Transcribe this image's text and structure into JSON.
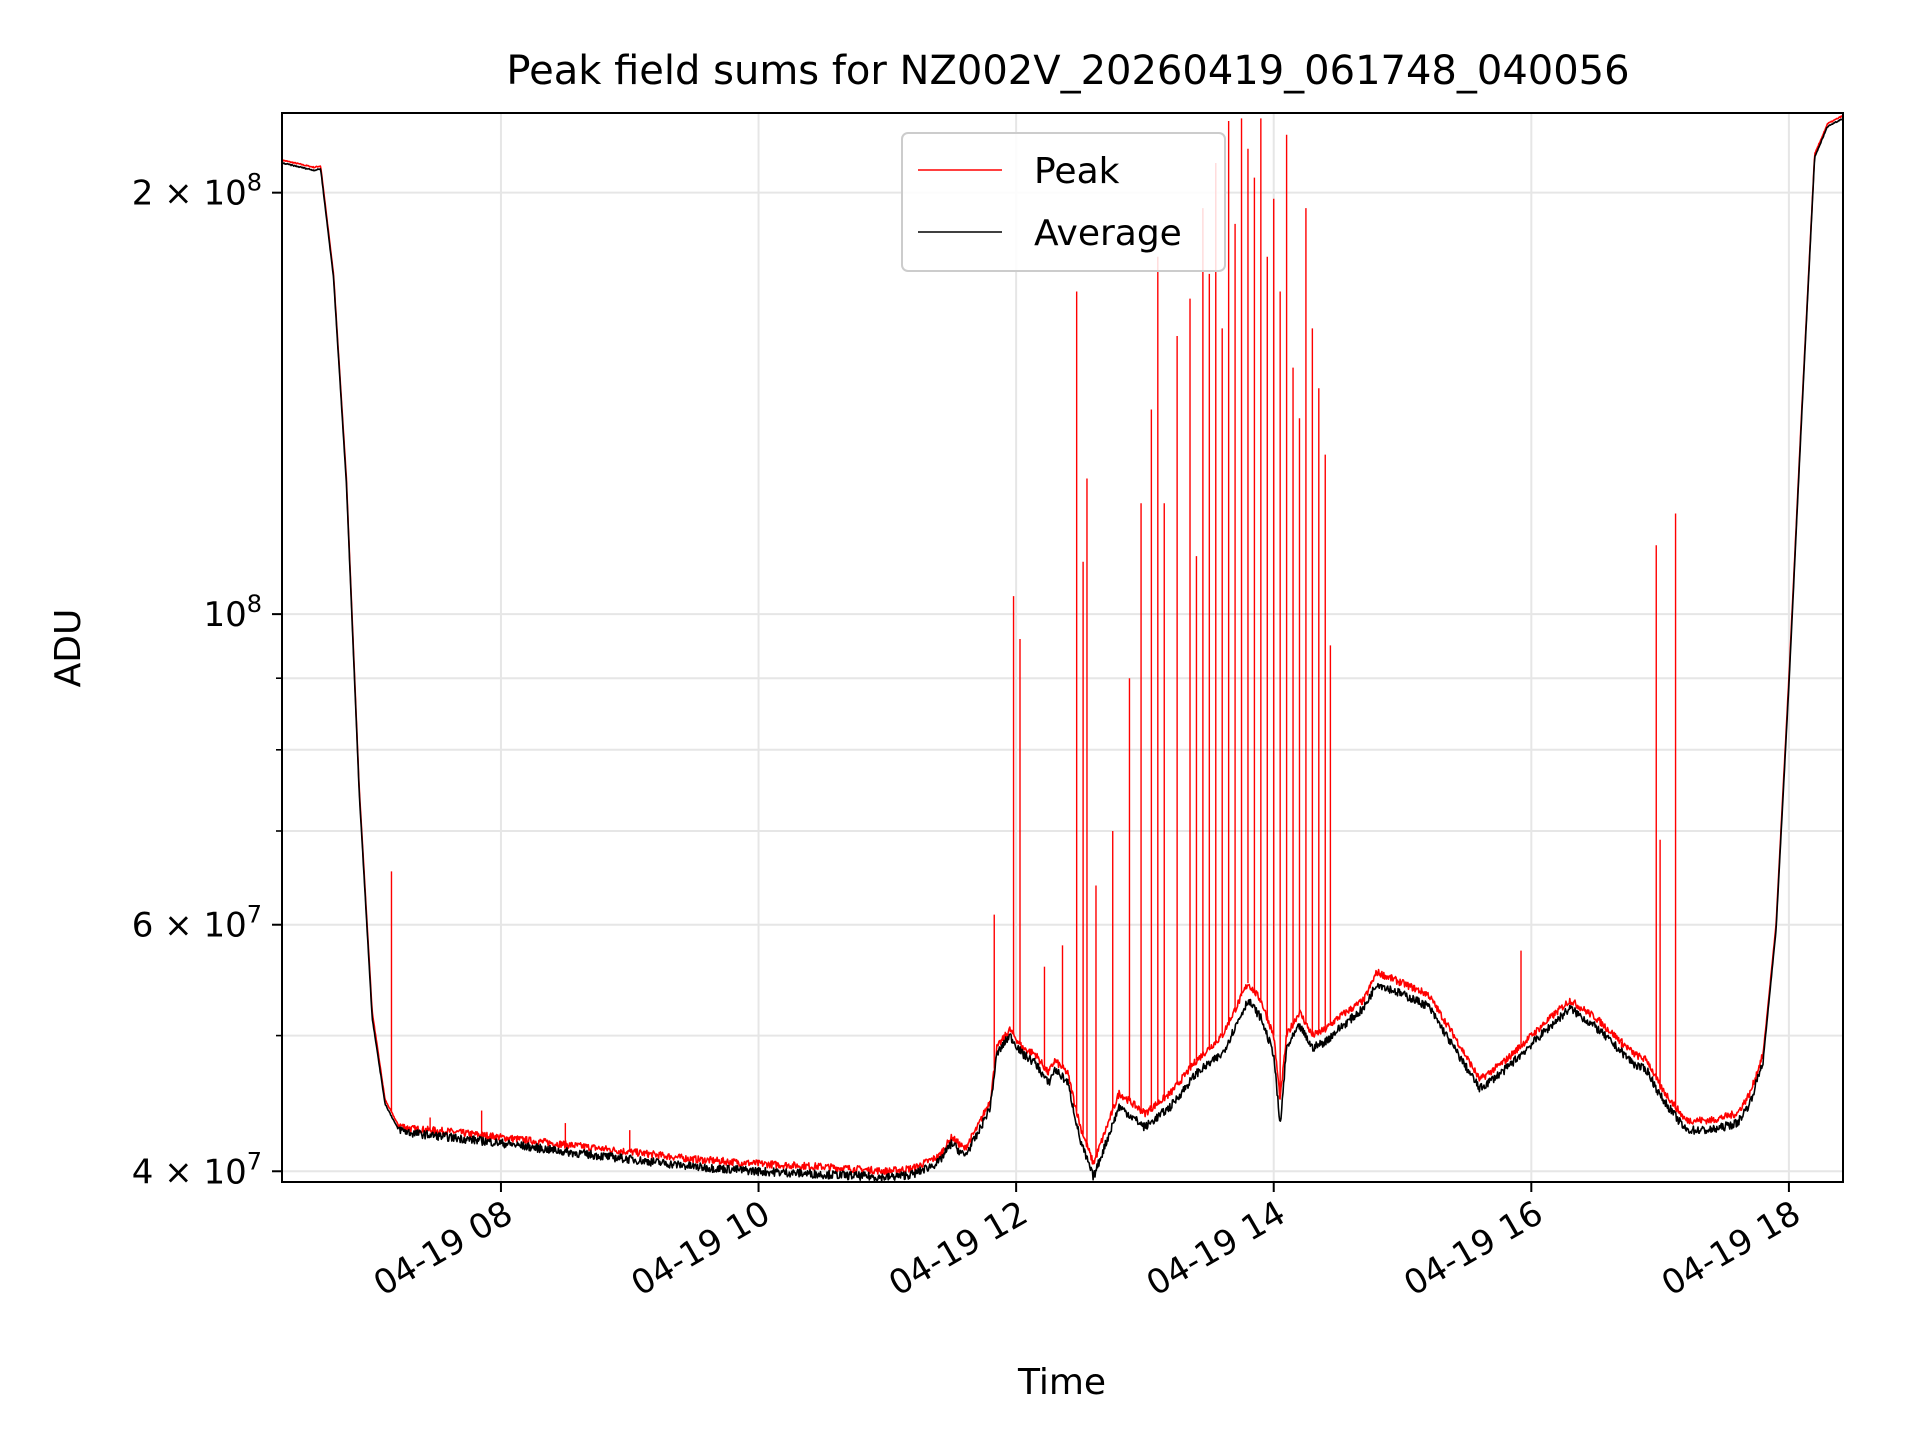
{
  "chart_data": {
    "type": "line",
    "title": "Peak field sums for NZ002V_20260419_061748_040056",
    "xlabel": "Time",
    "ylabel": "ADU",
    "yscale": "log",
    "xlim": [
      6.3,
      18.42
    ],
    "ylim": [
      39300000,
      228000000
    ],
    "grid": true,
    "legend_position": "upper center",
    "x_ticks": [
      {
        "value": 8,
        "label": "04-19 08"
      },
      {
        "value": 10,
        "label": "04-19 10"
      },
      {
        "value": 12,
        "label": "04-19 12"
      },
      {
        "value": 14,
        "label": "04-19 14"
      },
      {
        "value": 16,
        "label": "04-19 16"
      },
      {
        "value": 18,
        "label": "04-19 18"
      }
    ],
    "y_ticks": [
      {
        "value": 40000000,
        "base": "4 × 10",
        "exp": "7"
      },
      {
        "value": 60000000,
        "base": "6 × 10",
        "exp": "7"
      },
      {
        "value": 100000000,
        "base": "10",
        "exp": "8"
      },
      {
        "value": 200000000,
        "base": "2 × 10",
        "exp": "8"
      }
    ],
    "y_minor_ticks": [
      50000000,
      70000000,
      80000000,
      90000000
    ],
    "series": [
      {
        "name": "Peak",
        "color": "#ff0000",
        "x": [
          6.3,
          6.5,
          6.55,
          6.6,
          6.7,
          6.8,
          6.9,
          7.0,
          7.1,
          7.2,
          7.3,
          7.6,
          8.0,
          8.5,
          9.0,
          9.5,
          10.0,
          10.5,
          11.0,
          11.2,
          11.4,
          11.5,
          11.6,
          11.7,
          11.8,
          11.85,
          11.95,
          12.05,
          12.15,
          12.25,
          12.3,
          12.4,
          12.5,
          12.6,
          12.8,
          13.0,
          13.2,
          13.4,
          13.6,
          13.8,
          13.9,
          14.0,
          14.05,
          14.1,
          14.2,
          14.3,
          14.4,
          14.5,
          14.7,
          14.8,
          15.0,
          15.2,
          15.4,
          15.6,
          15.8,
          16.0,
          16.2,
          16.3,
          16.5,
          16.8,
          16.9,
          17.0,
          17.2,
          17.4,
          17.6,
          17.7,
          17.8,
          17.9,
          18.0,
          18.1,
          18.2,
          18.3,
          18.42
        ],
        "y": [
          211000000,
          209000000,
          208500000,
          209000000,
          175000000,
          125000000,
          75000000,
          52000000,
          45000000,
          43200000,
          42900000,
          42700000,
          42300000,
          41800000,
          41300000,
          40800000,
          40500000,
          40300000,
          40000000,
          40200000,
          41000000,
          42300000,
          41500000,
          43000000,
          45000000,
          49000000,
          50500000,
          49000000,
          48500000,
          47000000,
          48000000,
          47000000,
          43000000,
          40500000,
          45500000,
          44000000,
          45500000,
          48000000,
          50000000,
          54500000,
          53000000,
          50000000,
          45000000,
          50000000,
          52000000,
          50000000,
          50500000,
          51500000,
          53000000,
          55500000,
          54500000,
          53500000,
          50000000,
          46500000,
          48000000,
          50000000,
          52000000,
          53000000,
          51500000,
          48500000,
          48000000,
          46000000,
          43500000,
          43500000,
          44000000,
          45500000,
          48500000,
          60000000,
          90000000,
          140000000,
          213000000,
          224000000,
          227000000
        ],
        "spikes": [
          [
            7.15,
            65500000
          ],
          [
            7.45,
            43700000
          ],
          [
            7.85,
            44200000
          ],
          [
            8.5,
            43300000
          ],
          [
            9.0,
            42800000
          ],
          [
            11.83,
            61000000
          ],
          [
            11.98,
            103000000
          ],
          [
            12.03,
            96000000
          ],
          [
            12.22,
            56000000
          ],
          [
            12.36,
            58000000
          ],
          [
            12.47,
            170000000
          ],
          [
            12.52,
            109000000
          ],
          [
            12.55,
            125000000
          ],
          [
            12.62,
            64000000
          ],
          [
            12.75,
            70000000
          ],
          [
            12.88,
            90000000
          ],
          [
            12.97,
            120000000
          ],
          [
            13.05,
            140000000
          ],
          [
            13.1,
            180000000
          ],
          [
            13.15,
            120000000
          ],
          [
            13.25,
            158000000
          ],
          [
            13.35,
            168000000
          ],
          [
            13.4,
            110000000
          ],
          [
            13.45,
            195000000
          ],
          [
            13.5,
            175000000
          ],
          [
            13.55,
            210000000
          ],
          [
            13.6,
            160000000
          ],
          [
            13.65,
            225000000
          ],
          [
            13.7,
            190000000
          ],
          [
            13.75,
            226000000
          ],
          [
            13.8,
            215000000
          ],
          [
            13.85,
            205000000
          ],
          [
            13.9,
            226000000
          ],
          [
            13.95,
            180000000
          ],
          [
            14.0,
            198000000
          ],
          [
            14.05,
            170000000
          ],
          [
            14.1,
            220000000
          ],
          [
            14.15,
            150000000
          ],
          [
            14.2,
            138000000
          ],
          [
            14.25,
            195000000
          ],
          [
            14.3,
            160000000
          ],
          [
            14.35,
            145000000
          ],
          [
            14.4,
            130000000
          ],
          [
            14.44,
            95000000
          ],
          [
            15.92,
            57500000
          ],
          [
            16.7,
            49000000
          ],
          [
            16.8,
            48500000
          ],
          [
            16.97,
            112000000
          ],
          [
            17.0,
            69000000
          ],
          [
            17.12,
            118000000
          ]
        ]
      },
      {
        "name": "Average",
        "color": "#000000",
        "x": [
          6.3,
          6.5,
          6.55,
          6.6,
          6.7,
          6.8,
          6.9,
          7.0,
          7.1,
          7.2,
          7.3,
          7.6,
          8.0,
          8.5,
          9.0,
          9.5,
          10.0,
          10.5,
          11.0,
          11.2,
          11.4,
          11.5,
          11.6,
          11.7,
          11.8,
          11.85,
          11.95,
          12.05,
          12.15,
          12.25,
          12.3,
          12.4,
          12.5,
          12.6,
          12.8,
          13.0,
          13.2,
          13.4,
          13.6,
          13.8,
          13.9,
          14.0,
          14.05,
          14.1,
          14.2,
          14.3,
          14.4,
          14.5,
          14.7,
          14.8,
          15.0,
          15.2,
          15.4,
          15.6,
          15.8,
          16.0,
          16.2,
          16.3,
          16.5,
          16.8,
          16.9,
          17.0,
          17.2,
          17.4,
          17.6,
          17.7,
          17.8,
          17.9,
          18.0,
          18.1,
          18.2,
          18.3,
          18.42
        ],
        "y": [
          210000000,
          208000000,
          207500000,
          208000000,
          174000000,
          124000000,
          74500000,
          51500000,
          44700000,
          42900000,
          42600000,
          42300000,
          41900000,
          41300000,
          40800000,
          40300000,
          40000000,
          39800000,
          39600000,
          39800000,
          40600000,
          41900000,
          41000000,
          42500000,
          44500000,
          48500000,
          50000000,
          48500000,
          47800000,
          46200000,
          47300000,
          46300000,
          42000000,
          39600000,
          44500000,
          43000000,
          44500000,
          47000000,
          48500000,
          53000000,
          51500000,
          48500000,
          43000000,
          49000000,
          50800000,
          49000000,
          49500000,
          50500000,
          52300000,
          54500000,
          53500000,
          52500000,
          49000000,
          45800000,
          47300000,
          49300000,
          51300000,
          52300000,
          50700000,
          47700000,
          47200000,
          45300000,
          42800000,
          42800000,
          43300000,
          44800000,
          48000000,
          59500000,
          89000000,
          139000000,
          212000000,
          223000000,
          226000000
        ]
      }
    ]
  }
}
